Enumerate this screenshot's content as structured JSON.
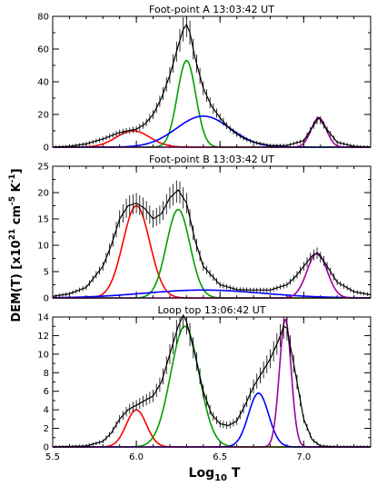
{
  "figure": {
    "ylabel": "DEM(T) [x10",
    "ylabel_sup1": "21",
    "ylabel_mid": " cm",
    "ylabel_sup2": "-5",
    "ylabel_end": " K",
    "ylabel_sup3": "-1",
    "ylabel_close": "]",
    "xlabel_main": "Log",
    "xlabel_sub": "10",
    "xlabel_end": " T"
  },
  "chart_data": [
    {
      "type": "line",
      "title": "Foot-point A 13:03:42 UT",
      "xlim": [
        5.5,
        7.4
      ],
      "ylim": [
        0,
        80
      ],
      "yticks": [
        0,
        20,
        40,
        60,
        80
      ],
      "xticks": [
        5.5,
        6.0,
        6.5,
        7.0
      ],
      "components": [
        {
          "color": "#ff0000",
          "amp": 10,
          "center": 5.98,
          "width": 0.1
        },
        {
          "color": "#00a000",
          "amp": 53,
          "center": 6.3,
          "width": 0.055
        },
        {
          "color": "#0000ff",
          "amp": 19,
          "center": 6.4,
          "width": 0.16
        },
        {
          "color": "#a000a0",
          "amp": 18,
          "center": 7.09,
          "width": 0.045
        }
      ],
      "total": {
        "color": "#000000",
        "x": [
          5.5,
          5.6,
          5.7,
          5.8,
          5.85,
          5.9,
          5.95,
          6.0,
          6.05,
          6.1,
          6.15,
          6.2,
          6.25,
          6.28,
          6.3,
          6.32,
          6.35,
          6.4,
          6.45,
          6.5,
          6.55,
          6.6,
          6.65,
          6.7,
          6.8,
          6.9,
          7.0,
          7.05,
          7.09,
          7.13,
          7.2,
          7.3,
          7.4
        ],
        "y": [
          0,
          0.5,
          2,
          5,
          7,
          9,
          10,
          11,
          14,
          20,
          30,
          44,
          62,
          72,
          75,
          70,
          55,
          36,
          25,
          18,
          12,
          8,
          5,
          3,
          1,
          1,
          4,
          12,
          18,
          12,
          3,
          0.5,
          0
        ]
      }
    },
    {
      "type": "line",
      "title": "Foot-point B 13:03:42 UT",
      "xlim": [
        5.5,
        7.4
      ],
      "ylim": [
        0,
        25
      ],
      "yticks": [
        0,
        5,
        10,
        15,
        20,
        25
      ],
      "xticks": [
        5.5,
        6.0,
        6.5,
        7.0
      ],
      "components": [
        {
          "color": "#ff0000",
          "amp": 17.5,
          "center": 6.0,
          "width": 0.08
        },
        {
          "color": "#00a000",
          "amp": 16.8,
          "center": 6.25,
          "width": 0.07
        },
        {
          "color": "#0000ff",
          "amp": 1.5,
          "center": 6.4,
          "width": 0.35
        },
        {
          "color": "#a000a0",
          "amp": 8.5,
          "center": 7.08,
          "width": 0.06
        }
      ],
      "total": {
        "color": "#000000",
        "x": [
          5.5,
          5.6,
          5.7,
          5.8,
          5.85,
          5.9,
          5.95,
          6.0,
          6.05,
          6.1,
          6.15,
          6.2,
          6.25,
          6.3,
          6.35,
          6.4,
          6.5,
          6.6,
          6.7,
          6.8,
          6.9,
          6.95,
          7.0,
          7.05,
          7.08,
          7.12,
          7.2,
          7.3,
          7.4
        ],
        "y": [
          0.3,
          0.8,
          2,
          6,
          10,
          15,
          17.5,
          18,
          17,
          15,
          16,
          19,
          20.5,
          18,
          11,
          6,
          2.5,
          1.6,
          1.5,
          1.5,
          2.5,
          4,
          6,
          8,
          8.5,
          7,
          3,
          1.2,
          0.6
        ]
      }
    },
    {
      "type": "line",
      "title": "Loop top 13:06:42 UT",
      "xlim": [
        5.5,
        7.4
      ],
      "ylim": [
        0,
        14
      ],
      "yticks": [
        0,
        2,
        4,
        6,
        8,
        10,
        12,
        14
      ],
      "xticks": [
        5.5,
        6.0,
        6.5,
        7.0
      ],
      "components": [
        {
          "color": "#ff0000",
          "amp": 4,
          "center": 6.0,
          "width": 0.06
        },
        {
          "color": "#00a000",
          "amp": 13,
          "center": 6.29,
          "width": 0.085
        },
        {
          "color": "#0000ff",
          "amp": 5.8,
          "center": 6.73,
          "width": 0.06
        },
        {
          "color": "#a000a0",
          "amp": 13.8,
          "center": 6.89,
          "width": 0.035
        }
      ],
      "total": {
        "color": "#000000",
        "x": [
          5.5,
          5.7,
          5.8,
          5.85,
          5.9,
          5.95,
          6.0,
          6.05,
          6.1,
          6.15,
          6.2,
          6.25,
          6.28,
          6.3,
          6.35,
          6.4,
          6.45,
          6.5,
          6.55,
          6.6,
          6.65,
          6.7,
          6.75,
          6.8,
          6.85,
          6.88,
          6.9,
          6.95,
          7.0,
          7.05,
          7.1,
          7.2,
          7.4
        ],
        "y": [
          0,
          0.1,
          0.6,
          1.5,
          3,
          4,
          4.5,
          5,
          5.5,
          7,
          10,
          13,
          14.2,
          13.5,
          10,
          6,
          3.5,
          2.5,
          2.3,
          2.8,
          4.5,
          6.5,
          8,
          9.5,
          11.5,
          13,
          12.8,
          8,
          3,
          0.8,
          0.1,
          0,
          0
        ]
      }
    }
  ]
}
